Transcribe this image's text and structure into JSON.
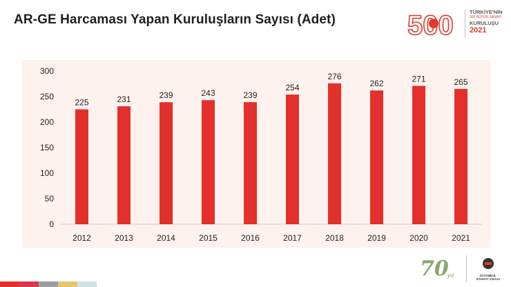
{
  "header": {
    "title": "AR-GE Harcaması Yapan Kuruluşların Sayısı (Adet)"
  },
  "brand_logo": {
    "number": "500",
    "line1": "TÜRKİYE'NİN",
    "line2": "500 BÜYÜK SANAYİ",
    "line3": "KURULUŞU",
    "year": "2021"
  },
  "footer_logo": {
    "anniversary_number": "70",
    "anniversary_word": "yıl",
    "org_line1": "İSTANBUL",
    "org_line2": "SANAYİ ODASI"
  },
  "colors": {
    "bar": "#e3302a",
    "brand_red": "#e03a2e",
    "panel": "#fdf2ed",
    "footer_strip": [
      "#e3302a",
      "#d63a4a",
      "#9aa0a0",
      "#e8c46a",
      "#cfe3e6"
    ]
  },
  "chart_data": {
    "type": "bar",
    "title": "AR-GE Harcaması Yapan Kuruluşların Sayısı (Adet)",
    "xlabel": "",
    "ylabel": "",
    "categories": [
      "2012",
      "2013",
      "2014",
      "2015",
      "2016",
      "2017",
      "2018",
      "2019",
      "2020",
      "2021"
    ],
    "values": [
      225,
      231,
      239,
      243,
      239,
      254,
      276,
      262,
      271,
      265
    ],
    "ylim": [
      0,
      300
    ],
    "yticks": [
      0,
      50,
      100,
      150,
      200,
      250,
      300
    ],
    "grid": false,
    "legend": "none"
  }
}
